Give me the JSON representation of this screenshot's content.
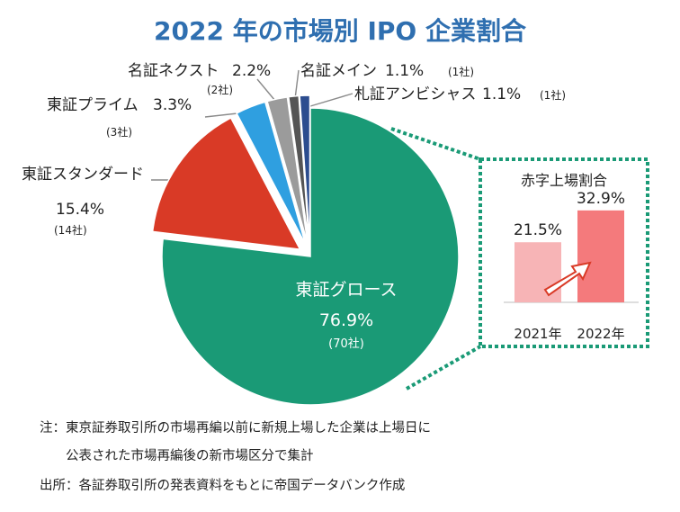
{
  "colors": {
    "title": "#2f6fb0",
    "growth": "#1a9a76",
    "standard": "#d93a26",
    "prime": "#2f9fe0",
    "sap_nagoya": "#9b9b9b",
    "main_nagoya": "#555555",
    "ambitious_sapporo": "#2c4d8f",
    "inset_2021": "#f7b4b6",
    "inset_2022": "#f47a7c",
    "inset_border": "#1a9a76"
  },
  "chart_data": {
    "type": "pie",
    "title": "2022 年の市場別 IPO 企業割合",
    "slices": [
      {
        "label": "東証グロース",
        "pct": "76.9%",
        "count": "(70社)",
        "value": 76.9,
        "color_key": "growth",
        "exploded": false
      },
      {
        "label": "東証スタンダード",
        "pct": "15.4%",
        "count": "(14社)",
        "value": 15.4,
        "color_key": "standard",
        "exploded": true
      },
      {
        "label": "東証プライム",
        "pct": "3.3%",
        "count": "(3社)",
        "value": 3.3,
        "color_key": "prime",
        "exploded": true
      },
      {
        "label": "名証ネクスト",
        "pct": "2.2%",
        "count": "(2社)",
        "value": 2.2,
        "color_key": "sap_nagoya",
        "exploded": true
      },
      {
        "label": "名証メイン",
        "pct": "1.1%",
        "count": "(1社)",
        "value": 1.1,
        "color_key": "main_nagoya",
        "exploded": true
      },
      {
        "label": "札証アンビシャス",
        "pct": "1.1%",
        "count": "(1社)",
        "value": 1.1,
        "color_key": "ambitious_sapporo",
        "exploded": true
      }
    ],
    "inset": {
      "type": "bar",
      "title": "赤字上場割合",
      "categories": [
        "2021年",
        "2022年"
      ],
      "values": [
        21.5,
        32.9
      ],
      "value_labels": [
        "21.5%",
        "32.9%"
      ],
      "ylim": [
        0,
        38
      ]
    }
  },
  "notes": {
    "line1": "注：東京証券取引所の市場再編以前に新規上場した企業は上場日に",
    "line2": "　　公表された市場再編後の新市場区分で集計",
    "source": "出所：各証券取引所の発表資料をもとに帝国データバンク作成"
  }
}
